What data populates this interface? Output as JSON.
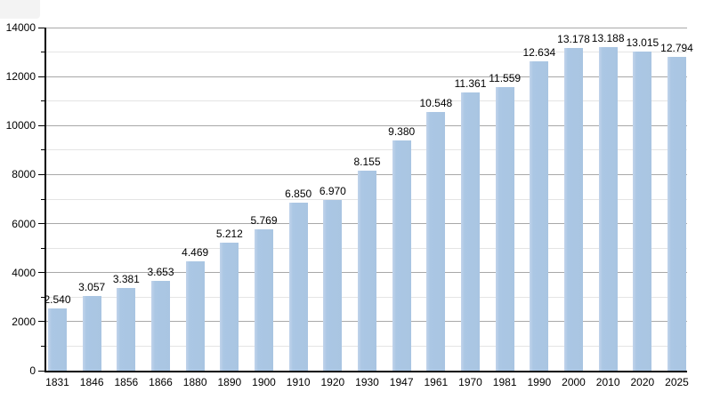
{
  "chart_data": {
    "type": "bar",
    "title": "",
    "xlabel": "",
    "ylabel": "",
    "legend": "none",
    "grid": "horizontal major (2000 step, gray) and minor (1000 step, light gray)",
    "ylim": [
      0,
      14000
    ],
    "y_major_ticks": [
      0,
      2000,
      4000,
      6000,
      8000,
      10000,
      12000,
      14000
    ],
    "y_major_tick_labels": [
      "0",
      "2000",
      "4000",
      "6000",
      "8000",
      "10000",
      "12000",
      "14000"
    ],
    "y_minor_step": 1000,
    "categories": [
      "1831",
      "1846",
      "1856",
      "1866",
      "1880",
      "1890",
      "1900",
      "1910",
      "1920",
      "1930",
      "1947",
      "1961",
      "1970",
      "1981",
      "1990",
      "2000",
      "2010",
      "2020",
      "2025"
    ],
    "values": [
      2540,
      3057,
      3381,
      3653,
      4469,
      5212,
      5769,
      6850,
      6970,
      8155,
      9380,
      10548,
      11361,
      11559,
      12634,
      13178,
      13188,
      13015,
      12794
    ],
    "value_labels": [
      "2.540",
      "3.057",
      "3.381",
      "3.653",
      "4.469",
      "5.212",
      "5.769",
      "6.850",
      "6.970",
      "8.155",
      "9.380",
      "10.548",
      "11.361",
      "11.559",
      "12.634",
      "13.178",
      "13.188",
      "13.015",
      "12.794"
    ],
    "colors": {
      "bar_fill": "#abc7e4",
      "bar_highlight": "#c2d4eb",
      "major_gridline": "#a8a8a8",
      "minor_gridline": "#e4e4e4",
      "axis": "#000000",
      "text": "#000000",
      "background": "#ffffff"
    }
  }
}
